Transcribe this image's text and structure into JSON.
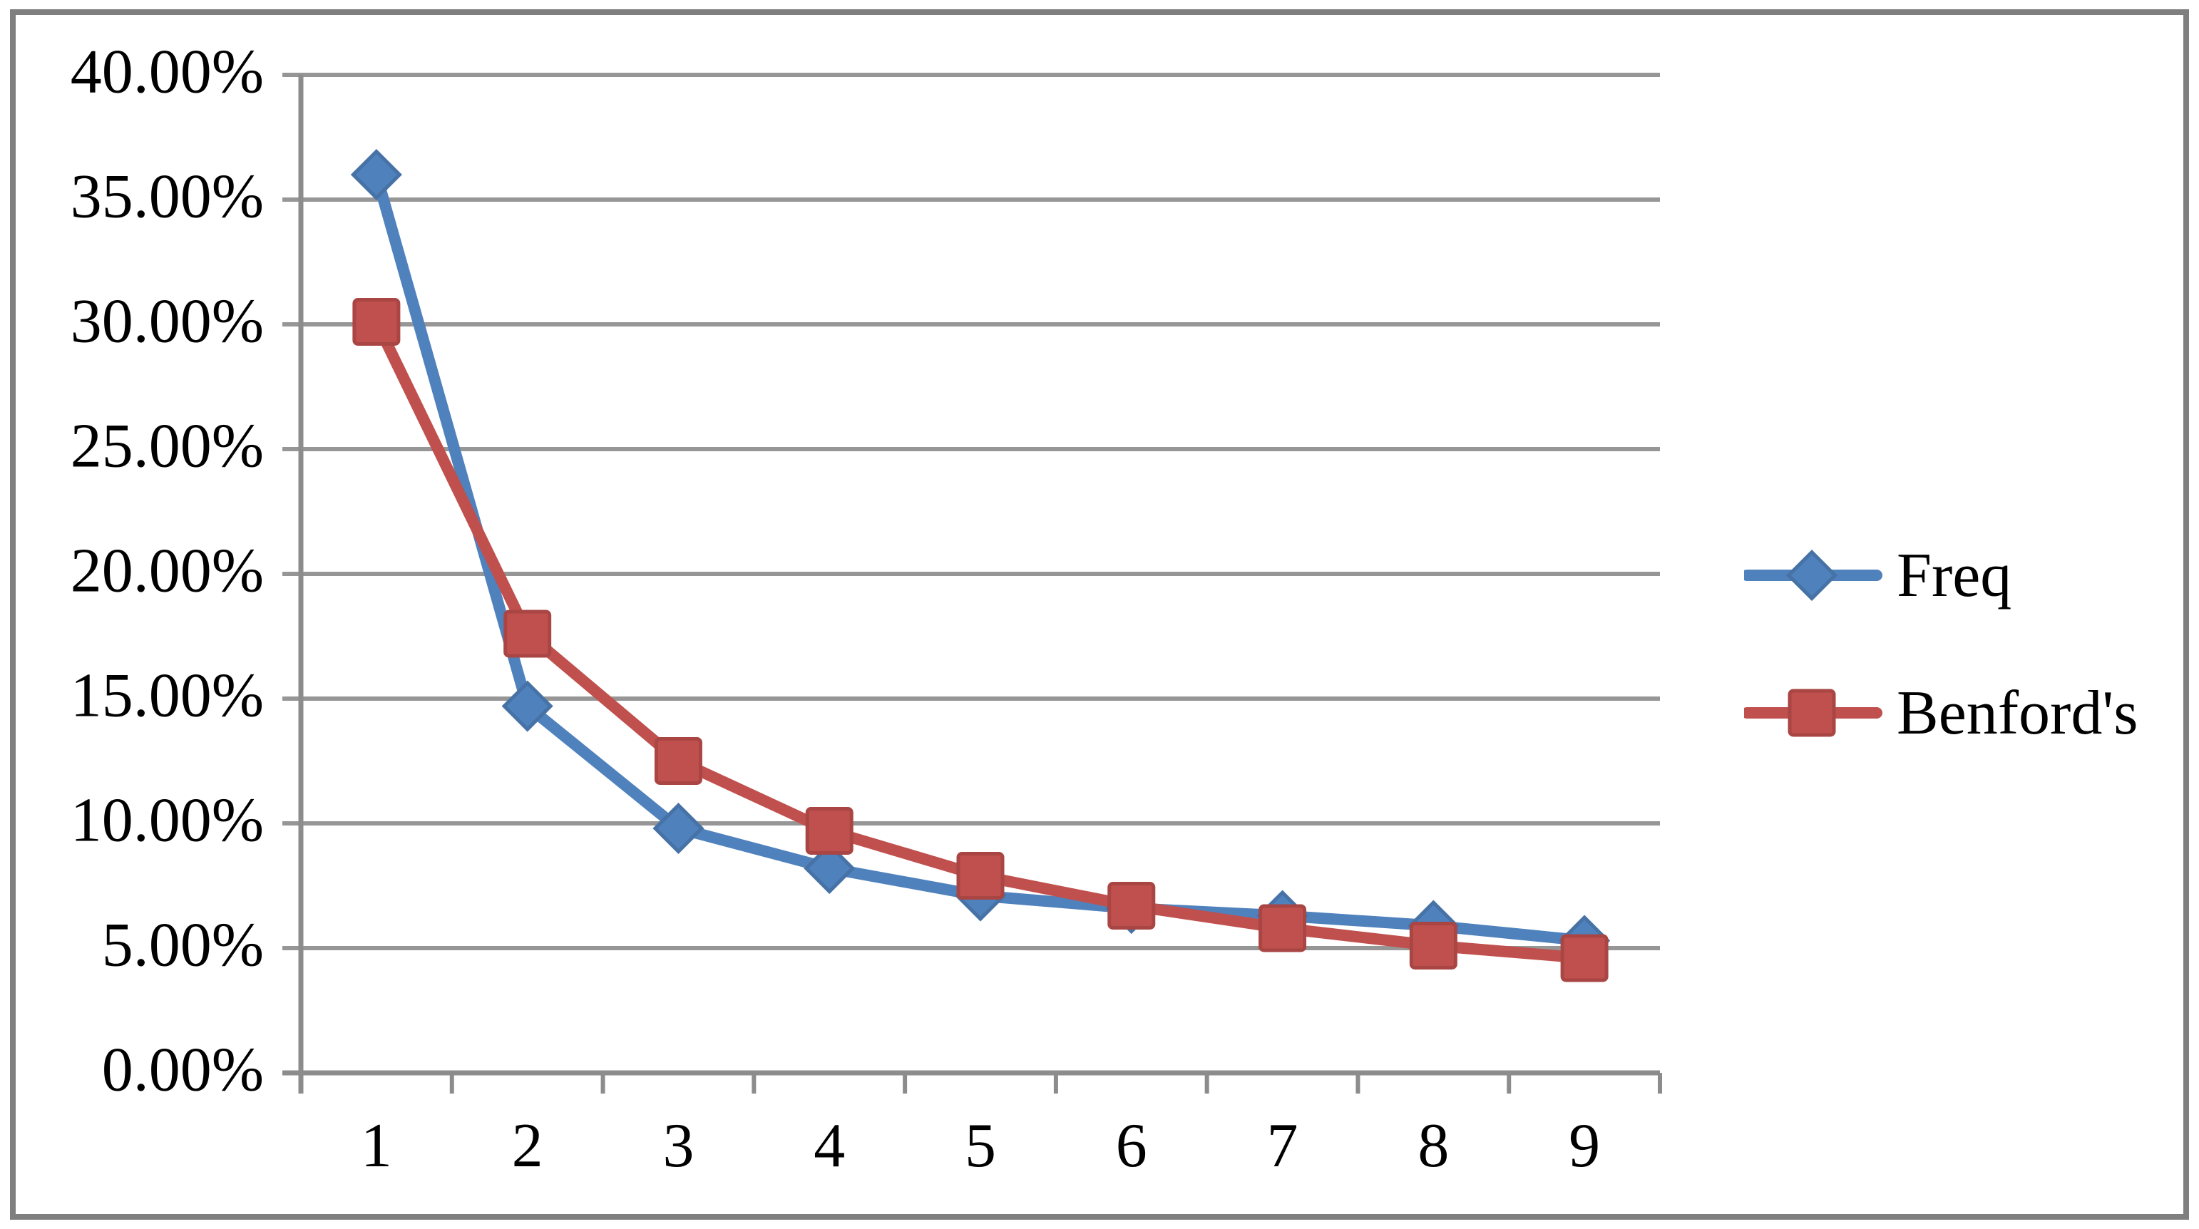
{
  "chart_data": {
    "type": "line",
    "title": "",
    "xlabel": "",
    "ylabel": "",
    "categories": [
      "1",
      "2",
      "3",
      "4",
      "5",
      "6",
      "7",
      "8",
      "9"
    ],
    "series": [
      {
        "name": "Freq",
        "color": "#4F81BD",
        "marker": "diamond",
        "values": [
          36.0,
          14.7,
          9.8,
          8.2,
          7.1,
          6.6,
          6.3,
          5.9,
          5.3
        ]
      },
      {
        "name": "Benford's",
        "color": "#C0504D",
        "marker": "square",
        "values": [
          30.1,
          17.6,
          12.5,
          9.7,
          7.9,
          6.7,
          5.8,
          5.1,
          4.6
        ]
      }
    ],
    "ylim": [
      0,
      40
    ],
    "ytick_step": 5,
    "ytick_labels": [
      "0.00%",
      "5.00%",
      "10.00%",
      "15.00%",
      "20.00%",
      "25.00%",
      "30.00%",
      "35.00%",
      "40.00%"
    ],
    "grid": true,
    "legend_position": "right"
  },
  "colors": {
    "background": "#FFFFFF",
    "frame_border": "#7F7F7F",
    "gridline": "#969696",
    "axis": "#8C8C8C",
    "label_text": "#000000"
  }
}
